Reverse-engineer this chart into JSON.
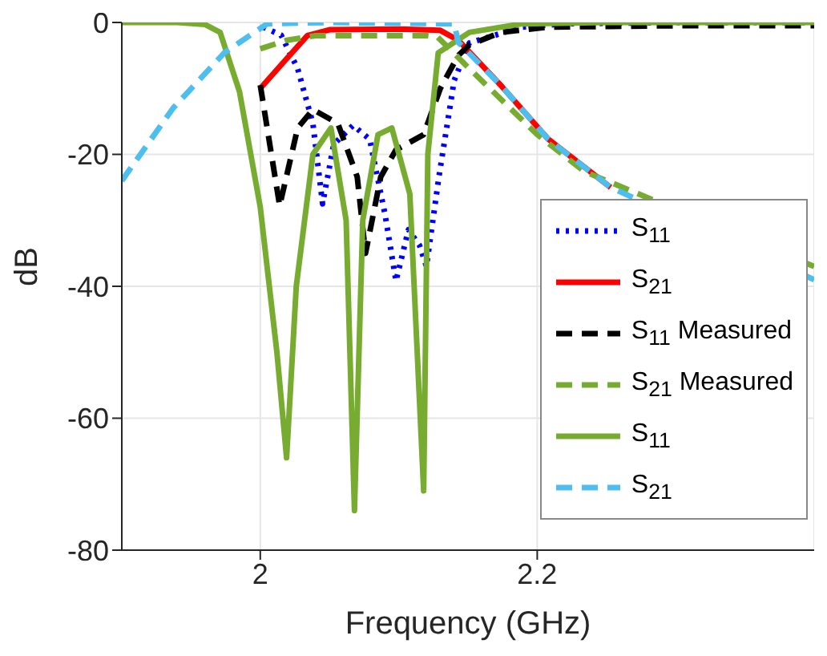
{
  "chart_data": {
    "type": "line",
    "xlabel": "Frequency (GHz)",
    "ylabel": "dB",
    "xlim": [
      1.9,
      2.4
    ],
    "xticks": [
      2,
      2.2
    ],
    "ylim": [
      -80,
      0
    ],
    "yticks": [
      -80,
      -60,
      -40,
      -20,
      0
    ],
    "grid": true,
    "legend": "right",
    "marker": "none",
    "series": [
      {
        "name": "S$_{11}$",
        "color": "#0000ff",
        "line_style": "dotted",
        "x": [
          2.002,
          2.015,
          2.027,
          2.038,
          2.045,
          2.053,
          2.067,
          2.079,
          2.09,
          2.098,
          2.107,
          2.115,
          2.12,
          2.129,
          2.14,
          2.151,
          2.189,
          2.22,
          2.3,
          2.4
        ],
        "values": [
          -0.7,
          -1.9,
          -7,
          -15.3,
          -27.5,
          -18.5,
          -15.6,
          -17.7,
          -29,
          -39.2,
          -31.4,
          -33.8,
          -37,
          -23.4,
          -8.8,
          -3.1,
          -0.7,
          -0.2,
          0,
          0
        ]
      },
      {
        "name": "S$_{21}$",
        "color": "#ff0000",
        "line_style": "solid",
        "x": [
          2.0,
          2.019,
          2.034,
          2.05,
          2.1,
          2.13,
          2.143,
          2.174,
          2.208,
          2.253
        ],
        "values": [
          -10,
          -5.5,
          -2,
          -1.1,
          -1,
          -1.2,
          -2.7,
          -9.6,
          -17.7,
          -25
        ]
      },
      {
        "name": "S$_{11}$ Measured",
        "color": "#000000",
        "line_style": "dashed",
        "x": [
          2.0,
          2.014,
          2.027,
          2.038,
          2.056,
          2.07,
          2.076,
          2.087,
          2.098,
          2.118,
          2.13,
          2.143,
          2.151,
          2.174,
          2.208,
          2.3,
          2.4
        ],
        "values": [
          -9.5,
          -27.8,
          -16,
          -13.2,
          -15.3,
          -23.4,
          -35,
          -23.4,
          -19.3,
          -17,
          -10,
          -5,
          -3.4,
          -1.5,
          -0.7,
          -0.5,
          -0.5
        ]
      },
      {
        "name": "S$_{21}$ Measured",
        "color": "#77ac30",
        "line_style": "dashed",
        "x": [
          2.0,
          2.019,
          2.04,
          2.12,
          2.128,
          2.151,
          2.2,
          2.234,
          2.4
        ],
        "values": [
          -4,
          -2.7,
          -2,
          -2,
          -2.2,
          -7,
          -17,
          -22.6,
          -37
        ]
      },
      {
        "name": "S$_{11}$",
        "color": "#77ac30",
        "line_style": "solid",
        "x": [
          1.9,
          1.94,
          1.96,
          1.971,
          1.985,
          2.0,
          2.012,
          2.019,
          2.026,
          2.038,
          2.051,
          2.062,
          2.068,
          2.074,
          2.085,
          2.095,
          2.108,
          2.118,
          2.121,
          2.1285,
          2.151,
          2.189,
          2.25,
          2.4
        ],
        "values": [
          0,
          0,
          -0.3,
          -1.5,
          -10.5,
          -28,
          -50,
          -66,
          -40,
          -20,
          -16,
          -30,
          -74,
          -30,
          -17,
          -16,
          -26,
          -71,
          -20,
          -4.6,
          -1.5,
          -0.2,
          0,
          0
        ]
      },
      {
        "name": "S$_{21}$",
        "color": "#4dbeee",
        "line_style": "dashed",
        "x": [
          1.9,
          1.937,
          1.974,
          2.005,
          2.05,
          2.14,
          2.143,
          2.174,
          2.208,
          2.253,
          2.4
        ],
        "values": [
          -24,
          -13,
          -4.6,
          -0.2,
          0,
          -0.2,
          -3,
          -9.6,
          -17.7,
          -25,
          -39
        ]
      }
    ]
  }
}
